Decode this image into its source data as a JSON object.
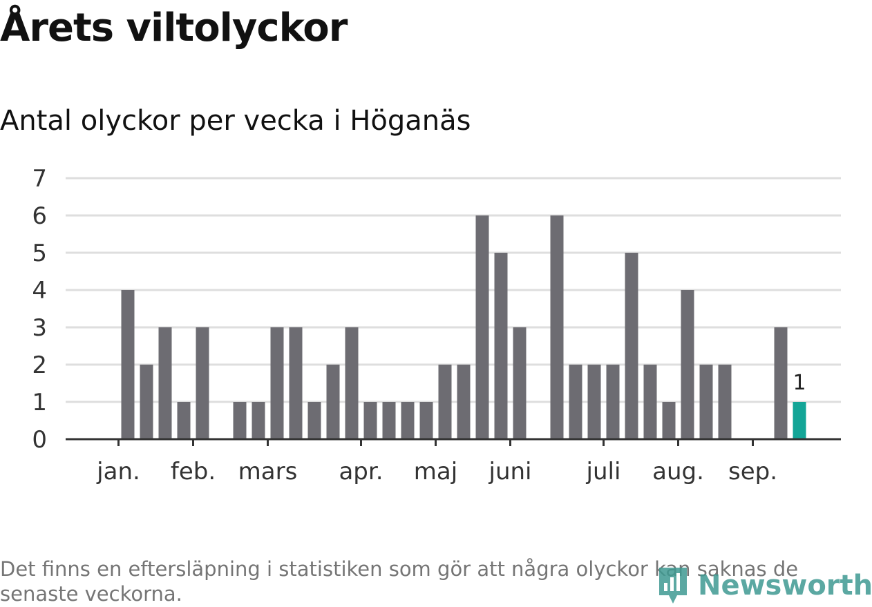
{
  "title": "Årets viltolyckor",
  "subtitle": "Antal olyckor per vecka i Höganäs",
  "footnote": "Det finns en eftersläpning i statistiken som gör att några olyckor kan saknas de senaste veckorna.",
  "brand": "Newsworthy",
  "colors": {
    "bar": "#6d6c72",
    "highlight": "#13a597",
    "grid": "#dedede",
    "axis": "#333333",
    "brand": "#3f9a92"
  },
  "chart_data": {
    "type": "bar",
    "xlabel": "",
    "ylabel": "",
    "ylim": [
      0,
      7
    ],
    "yticks": [
      "0",
      "1",
      "2",
      "3",
      "4",
      "5",
      "6",
      "7"
    ],
    "grid": true,
    "week_values": [
      0,
      0,
      0,
      4,
      2,
      3,
      1,
      3,
      0,
      1,
      1,
      3,
      3,
      1,
      2,
      3,
      1,
      1,
      1,
      1,
      2,
      2,
      6,
      5,
      3,
      0,
      6,
      2,
      2,
      2,
      5,
      2,
      1,
      4,
      2,
      2,
      0,
      0,
      3,
      1
    ],
    "highlight_last": true,
    "last_value_label": "1",
    "month_labels": [
      {
        "label": "jan.",
        "week": 3
      },
      {
        "label": "feb.",
        "week": 7
      },
      {
        "label": "mars",
        "week": 11
      },
      {
        "label": "apr.",
        "week": 16
      },
      {
        "label": "maj",
        "week": 20
      },
      {
        "label": "juni",
        "week": 24
      },
      {
        "label": "juli",
        "week": 29
      },
      {
        "label": "aug.",
        "week": 33
      },
      {
        "label": "sep.",
        "week": 37
      }
    ]
  }
}
